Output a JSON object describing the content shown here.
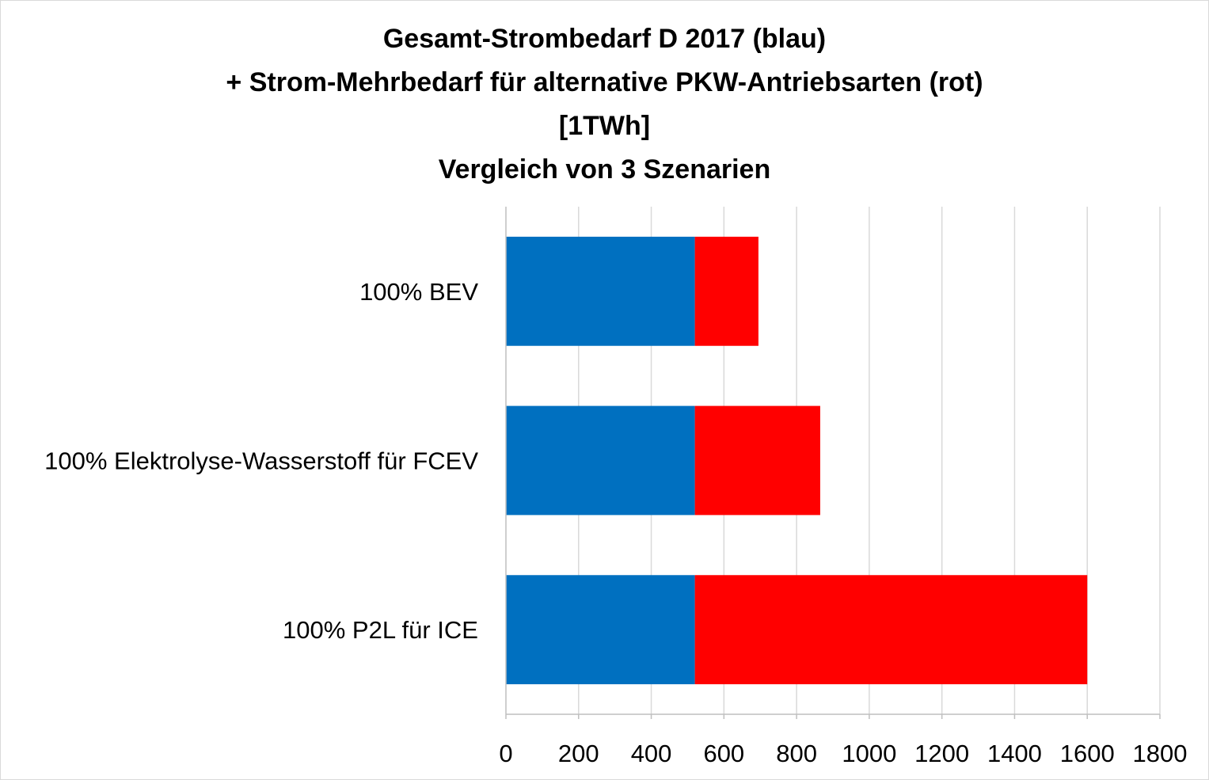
{
  "chart_data": {
    "type": "bar",
    "orientation": "horizontal",
    "stacked": true,
    "title_lines": [
      "Gesamt-Strombedarf D 2017 (blau)",
      "+ Strom-Mehrbedarf für alternative PKW-Antriebsarten (rot)",
      "[1TWh]",
      "Vergleich von 3 Szenarien"
    ],
    "categories": [
      "100% BEV",
      "100% Elektrolyse-Wasserstoff für FCEV",
      "100% P2L für ICE"
    ],
    "series": [
      {
        "values": [
          520,
          520,
          520
        ],
        "color": "#0070C0"
      },
      {
        "values": [
          175,
          345,
          1080
        ],
        "color": "#FF0000"
      }
    ],
    "xlim": [
      0,
      1800
    ],
    "xticks": [
      "0",
      "200",
      "400",
      "600",
      "800",
      "1000",
      "1200",
      "1400",
      "1600",
      "1800"
    ],
    "xlabel": "",
    "ylabel": "",
    "grid": "vertical",
    "legend": "none"
  }
}
